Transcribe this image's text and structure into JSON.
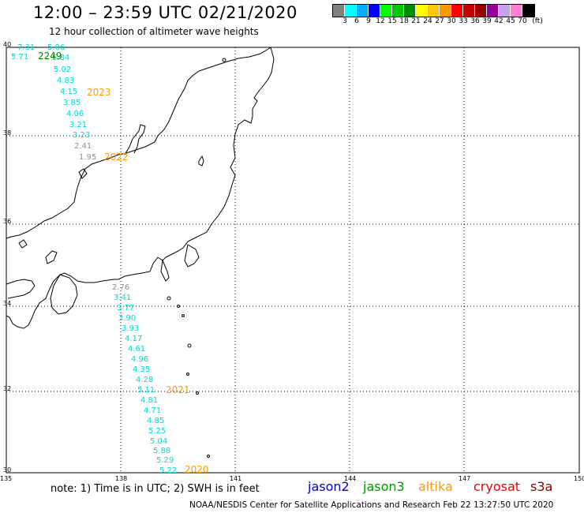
{
  "header": {
    "title": "12:00 – 23:59 UTC 02/21/2020",
    "subtitle": "12 hour collection of altimeter wave heights"
  },
  "colorbar": {
    "colors": [
      "#808080",
      "#00ffff",
      "#00b0ff",
      "#0000ff",
      "#00ff00",
      "#00c800",
      "#008c00",
      "#ffff00",
      "#ffc800",
      "#ff9600",
      "#ff0000",
      "#c80000",
      "#960000",
      "#960096",
      "#c8a0e6",
      "#ff82d2",
      "#000000"
    ],
    "labels": [
      "3",
      "6",
      "9",
      "12",
      "15",
      "18",
      "21",
      "24",
      "27",
      "30",
      "33",
      "36",
      "39",
      "42",
      "45",
      "70",
      "(ft)"
    ]
  },
  "axes": {
    "lon_labels": [
      "135",
      "138",
      "141",
      "144",
      "147",
      "150"
    ],
    "lat_labels": [
      "40",
      "38",
      "36",
      "34",
      "32",
      "30"
    ]
  },
  "footer": {
    "note": "note: 1) Time is in UTC; 2) SWH is in feet",
    "satellites": [
      {
        "name": "jason2",
        "color": "#0000cc"
      },
      {
        "name": "jason3",
        "color": "#009900"
      },
      {
        "name": "altika",
        "color": "#ff9900"
      },
      {
        "name": "cryosat",
        "color": "#ee0000"
      },
      {
        "name": "s3a",
        "color": "#880000"
      }
    ],
    "credit": "NOAA/NESDIS Center for Satellite Applications and Research    Feb 22 13:27:50 UTC 2020"
  },
  "north_track": {
    "wave_heights": [
      "7.31",
      "5.06",
      "5.71",
      "5.84",
      "5.02",
      "4.83",
      "4.15",
      "3.85",
      "4.06",
      "3.21",
      "3.23",
      "2.41",
      "1.95"
    ],
    "times": [
      {
        "text": "2249",
        "color": "#008800"
      },
      {
        "text": "2023",
        "color": "#ff9900"
      },
      {
        "text": "2022",
        "color": "#ff9900"
      }
    ]
  },
  "south_track": {
    "wave_heights": [
      "2.76",
      "3.41",
      "3.77",
      "3.90",
      "3.93",
      "4.17",
      "4.61",
      "4.96",
      "4.35",
      "4.28",
      "5.11",
      "4.81",
      "4.71",
      "4.85",
      "5.25",
      "5.04",
      "5.88",
      "5.29",
      "5.22"
    ],
    "times": [
      {
        "text": "2021",
        "color": "#ff9900"
      },
      {
        "text": "2020",
        "color": "#ff9900"
      }
    ]
  }
}
